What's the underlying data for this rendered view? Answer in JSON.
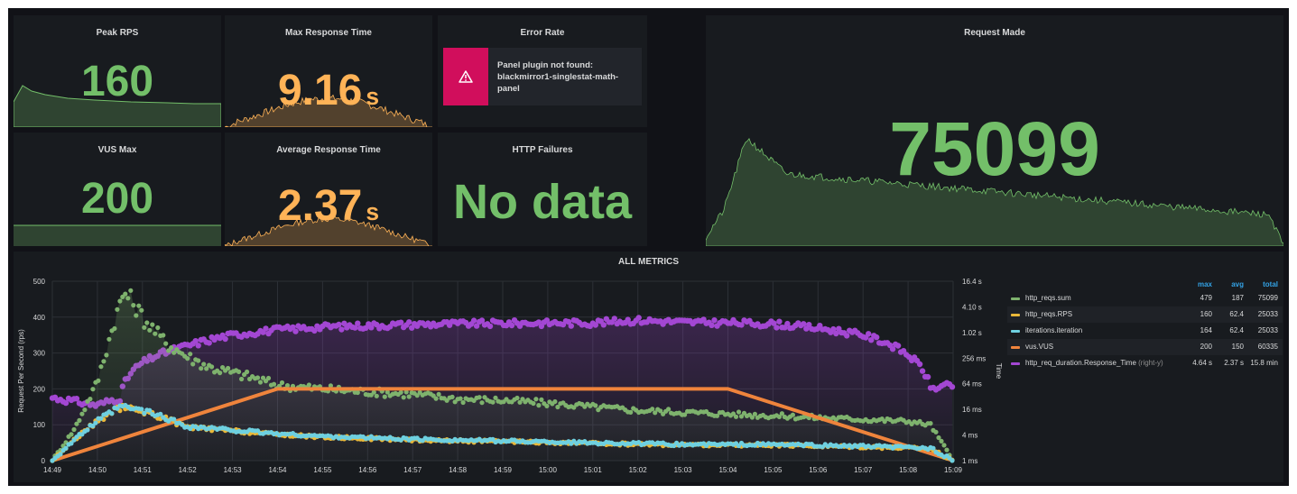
{
  "panels": {
    "peak_rps": {
      "title": "Peak RPS",
      "value": "160",
      "color": "#73bf69"
    },
    "vus_max": {
      "title": "VUS Max",
      "value": "200",
      "color": "#73bf69"
    },
    "max_response": {
      "title": "Max Response Time",
      "value": "9.16",
      "unit": "s",
      "color": "#ffb357"
    },
    "avg_response": {
      "title": "Average Response Time",
      "value": "2.37",
      "unit": "s",
      "color": "#ffb357"
    },
    "error_rate": {
      "title": "Error Rate",
      "error_text": "Panel plugin not found: blackmirror1-singlestat-math-panel",
      "error_color": "#d10e5c"
    },
    "http_failures": {
      "title": "HTTP Failures",
      "value": "No data",
      "color": "#73bf69"
    },
    "request_made": {
      "title": "Request Made",
      "value": "75099",
      "color": "#73bf69"
    }
  },
  "all_metrics": {
    "title": "ALL METRICS",
    "y_left_label": "Request Per Second (rps)",
    "y_right_label": "Time",
    "y_left_ticks": [
      "0",
      "100",
      "200",
      "300",
      "400",
      "500"
    ],
    "y_right_ticks": [
      "1 ms",
      "4 ms",
      "16 ms",
      "64 ms",
      "256 ms",
      "1.02 s",
      "4.10 s",
      "16.4 s"
    ],
    "x_ticks": [
      "14:49",
      "14:50",
      "14:51",
      "14:52",
      "14:53",
      "14:54",
      "14:55",
      "14:56",
      "14:57",
      "14:58",
      "14:59",
      "15:00",
      "15:01",
      "15:02",
      "15:03",
      "15:04",
      "15:05",
      "15:06",
      "15:07",
      "15:08",
      "15:09"
    ],
    "legend_headers": {
      "max": "max",
      "avg": "avg",
      "total": "total"
    },
    "legend": [
      {
        "name": "http_reqs.sum",
        "suffix": "",
        "max": "479",
        "avg": "187",
        "total": "75099",
        "color": "#7eb26d"
      },
      {
        "name": "http_reqs.RPS",
        "suffix": "",
        "max": "160",
        "avg": "62.4",
        "total": "25033",
        "color": "#eab839"
      },
      {
        "name": "iterations.iteration",
        "suffix": "",
        "max": "164",
        "avg": "62.4",
        "total": "25033",
        "color": "#6ed0e0"
      },
      {
        "name": "vus.VUS",
        "suffix": "",
        "max": "200",
        "avg": "150",
        "total": "60335",
        "color": "#ef843c"
      },
      {
        "name": "http_req_duration.Response_Time",
        "suffix": "(right-y)",
        "max": "4.64 s",
        "avg": "2.37 s",
        "total": "15.8 min",
        "color": "#a347d3"
      }
    ]
  },
  "chart_data": {
    "type": "line",
    "title": "ALL METRICS",
    "ylabel": "Request Per Second (rps)",
    "ylabel_right": "Time",
    "ylim": [
      0,
      500
    ],
    "ylim_right": [
      "1 ms",
      "16.4 s"
    ],
    "y_right_scale": "log",
    "x_range_minutes": [
      "14:49",
      "15:09"
    ],
    "series": [
      {
        "name": "http_reqs.sum",
        "axis": "left",
        "points": [
          [
            0,
            0
          ],
          [
            0.5,
            90
          ],
          [
            1,
            220
          ],
          [
            1.4,
            400
          ],
          [
            1.6,
            470
          ],
          [
            1.8,
            440
          ],
          [
            2,
            400
          ],
          [
            2.5,
            330
          ],
          [
            3,
            290
          ],
          [
            3.5,
            260
          ],
          [
            4,
            245
          ],
          [
            4.5,
            230
          ],
          [
            5,
            210
          ],
          [
            6,
            200
          ],
          [
            7,
            192
          ],
          [
            8,
            185
          ],
          [
            9,
            172
          ],
          [
            10,
            168
          ],
          [
            11,
            160
          ],
          [
            12,
            150
          ],
          [
            13,
            140
          ],
          [
            14,
            135
          ],
          [
            15,
            130
          ],
          [
            16,
            125
          ],
          [
            17,
            120
          ],
          [
            18,
            115
          ],
          [
            19,
            110
          ],
          [
            19.5,
            100
          ],
          [
            20,
            0
          ]
        ]
      },
      {
        "name": "iterations.iteration",
        "axis": "left",
        "points": [
          [
            0,
            0
          ],
          [
            0.5,
            60
          ],
          [
            1,
            110
          ],
          [
            1.5,
            150
          ],
          [
            2,
            140
          ],
          [
            2.5,
            120
          ],
          [
            3,
            95
          ],
          [
            4,
            85
          ],
          [
            5,
            75
          ],
          [
            6,
            68
          ],
          [
            8,
            60
          ],
          [
            10,
            55
          ],
          [
            12,
            50
          ],
          [
            14,
            45
          ],
          [
            16,
            45
          ],
          [
            18,
            40
          ],
          [
            19.5,
            35
          ],
          [
            20,
            0
          ]
        ]
      },
      {
        "name": "http_reqs.RPS",
        "axis": "left",
        "points": [
          [
            0,
            0
          ],
          [
            0.5,
            60
          ],
          [
            1,
            110
          ],
          [
            1.5,
            148
          ],
          [
            2,
            138
          ],
          [
            2.5,
            118
          ],
          [
            3,
            93
          ],
          [
            4,
            83
          ],
          [
            5,
            73
          ],
          [
            6,
            66
          ],
          [
            8,
            58
          ],
          [
            10,
            53
          ],
          [
            12,
            48
          ],
          [
            14,
            44
          ],
          [
            16,
            43
          ],
          [
            18,
            39
          ],
          [
            19.5,
            34
          ],
          [
            20,
            0
          ]
        ]
      },
      {
        "name": "vus.VUS",
        "axis": "left",
        "points": [
          [
            0,
            0
          ],
          [
            5,
            200
          ],
          [
            15,
            200
          ],
          [
            20,
            0
          ]
        ]
      },
      {
        "name": "http_req_duration.Response_Time",
        "axis": "right",
        "unit": "ms",
        "points": [
          [
            0,
            30
          ],
          [
            1,
            20
          ],
          [
            1.5,
            30
          ],
          [
            2,
            200
          ],
          [
            3,
            500
          ],
          [
            4,
            900
          ],
          [
            5,
            1200
          ],
          [
            6,
            1400
          ],
          [
            8,
            1600
          ],
          [
            10,
            1700
          ],
          [
            12,
            1750
          ],
          [
            13,
            2000
          ],
          [
            14,
            1800
          ],
          [
            15,
            1750
          ],
          [
            16,
            1650
          ],
          [
            17,
            1300
          ],
          [
            18,
            900
          ],
          [
            18.5,
            600
          ],
          [
            19,
            300
          ],
          [
            19.5,
            50
          ],
          [
            20,
            60
          ]
        ]
      }
    ]
  }
}
